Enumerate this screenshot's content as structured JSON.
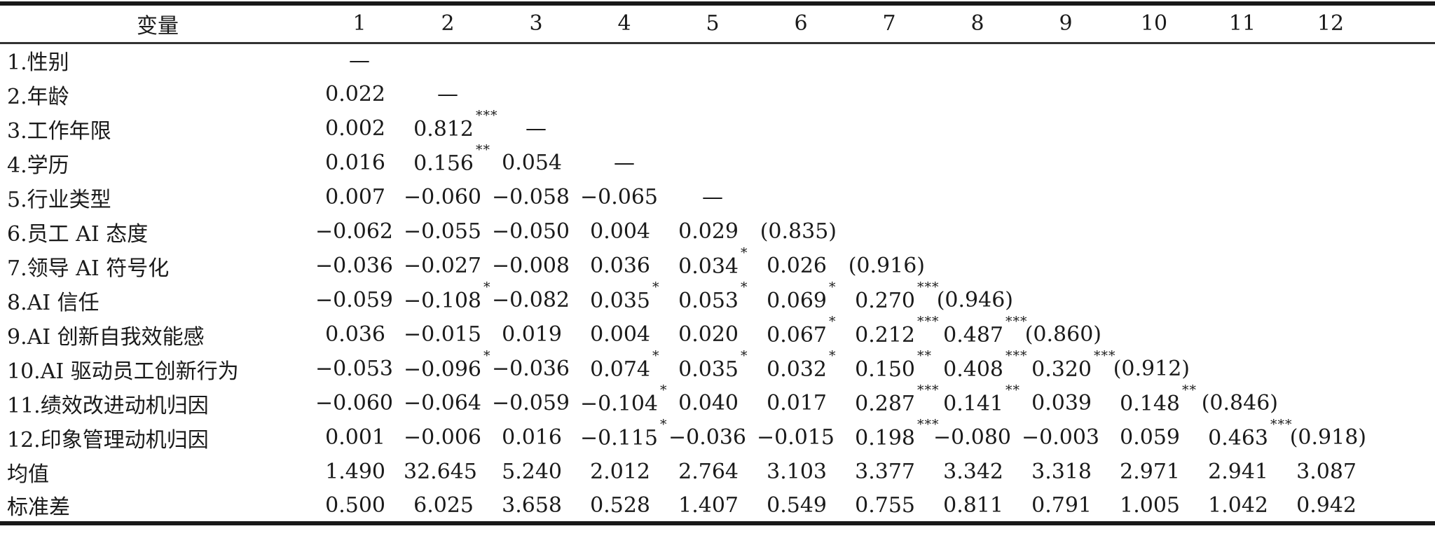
{
  "colors": {
    "text": "#1a1a1a",
    "rule": "#181818",
    "background": "#ffffff"
  },
  "table": {
    "header": [
      "变量",
      "1",
      "2",
      "3",
      "4",
      "5",
      "6",
      "7",
      "8",
      "9",
      "10",
      "11",
      "12"
    ],
    "diagonal_placeholder": "—",
    "rows": [
      {
        "label": "1.性别",
        "values": [
          "—",
          "",
          "",
          "",
          "",
          "",
          "",
          "",
          "",
          "",
          "",
          ""
        ]
      },
      {
        "label": "2.年龄",
        "values": [
          "0.022",
          "—",
          "",
          "",
          "",
          "",
          "",
          "",
          "",
          "",
          "",
          ""
        ]
      },
      {
        "label": "3.工作年限",
        "values": [
          "0.002",
          "0.812***",
          "—",
          "",
          "",
          "",
          "",
          "",
          "",
          "",
          "",
          ""
        ]
      },
      {
        "label": "4.学历",
        "values": [
          "0.016",
          "0.156**",
          "0.054",
          "—",
          "",
          "",
          "",
          "",
          "",
          "",
          "",
          ""
        ]
      },
      {
        "label": "5.行业类型",
        "values": [
          "0.007",
          "−0.060",
          "−0.058",
          "−0.065",
          "—",
          "",
          "",
          "",
          "",
          "",
          "",
          ""
        ]
      },
      {
        "label": "6.员工 AI 态度",
        "values": [
          "−0.062",
          "−0.055",
          "−0.050",
          "0.004",
          "0.029",
          "(0.835)",
          "",
          "",
          "",
          "",
          "",
          ""
        ]
      },
      {
        "label": "7.领导 AI 符号化",
        "values": [
          "−0.036",
          "−0.027",
          "−0.008",
          "0.036",
          "0.034*",
          "0.026",
          "(0.916)",
          "",
          "",
          "",
          "",
          ""
        ]
      },
      {
        "label": "8.AI 信任",
        "values": [
          "−0.059",
          "−0.108*",
          "−0.082",
          "0.035*",
          "0.053*",
          "0.069*",
          "0.270***",
          "(0.946)",
          "",
          "",
          "",
          ""
        ]
      },
      {
        "label": "9.AI 创新自我效能感",
        "values": [
          "0.036",
          "−0.015",
          "0.019",
          "0.004",
          "0.020",
          "0.067*",
          "0.212***",
          "0.487***",
          "(0.860)",
          "",
          "",
          ""
        ]
      },
      {
        "label": "10.AI 驱动员工创新行为",
        "values": [
          "−0.053",
          "−0.096*",
          "−0.036",
          "0.074*",
          "0.035*",
          "0.032*",
          "0.150**",
          "0.408***",
          "0.320***",
          "(0.912)",
          "",
          ""
        ]
      },
      {
        "label": "11.绩效改进动机归因",
        "values": [
          "−0.060",
          "−0.064",
          "−0.059",
          "−0.104*",
          "0.040",
          "0.017",
          "0.287***",
          "0.141**",
          "0.039",
          "0.148**",
          "(0.846)",
          ""
        ]
      },
      {
        "label": "12.印象管理动机归因",
        "values": [
          "0.001",
          "−0.006",
          "0.016",
          "−0.115*",
          "−0.036",
          "−0.015",
          "0.198***",
          "−0.080",
          "−0.003",
          "0.059",
          "0.463***",
          "(0.918)"
        ]
      },
      {
        "label": "均值",
        "values": [
          "1.490",
          "32.645",
          "5.240",
          "2.012",
          "2.764",
          "3.103",
          "3.377",
          "3.342",
          "3.318",
          "2.971",
          "2.941",
          "3.087"
        ]
      },
      {
        "label": "标准差",
        "values": [
          "0.500",
          "6.025",
          "3.658",
          "0.528",
          "1.407",
          "0.549",
          "0.755",
          "0.811",
          "0.791",
          "1.005",
          "1.042",
          "0.942"
        ]
      }
    ]
  }
}
